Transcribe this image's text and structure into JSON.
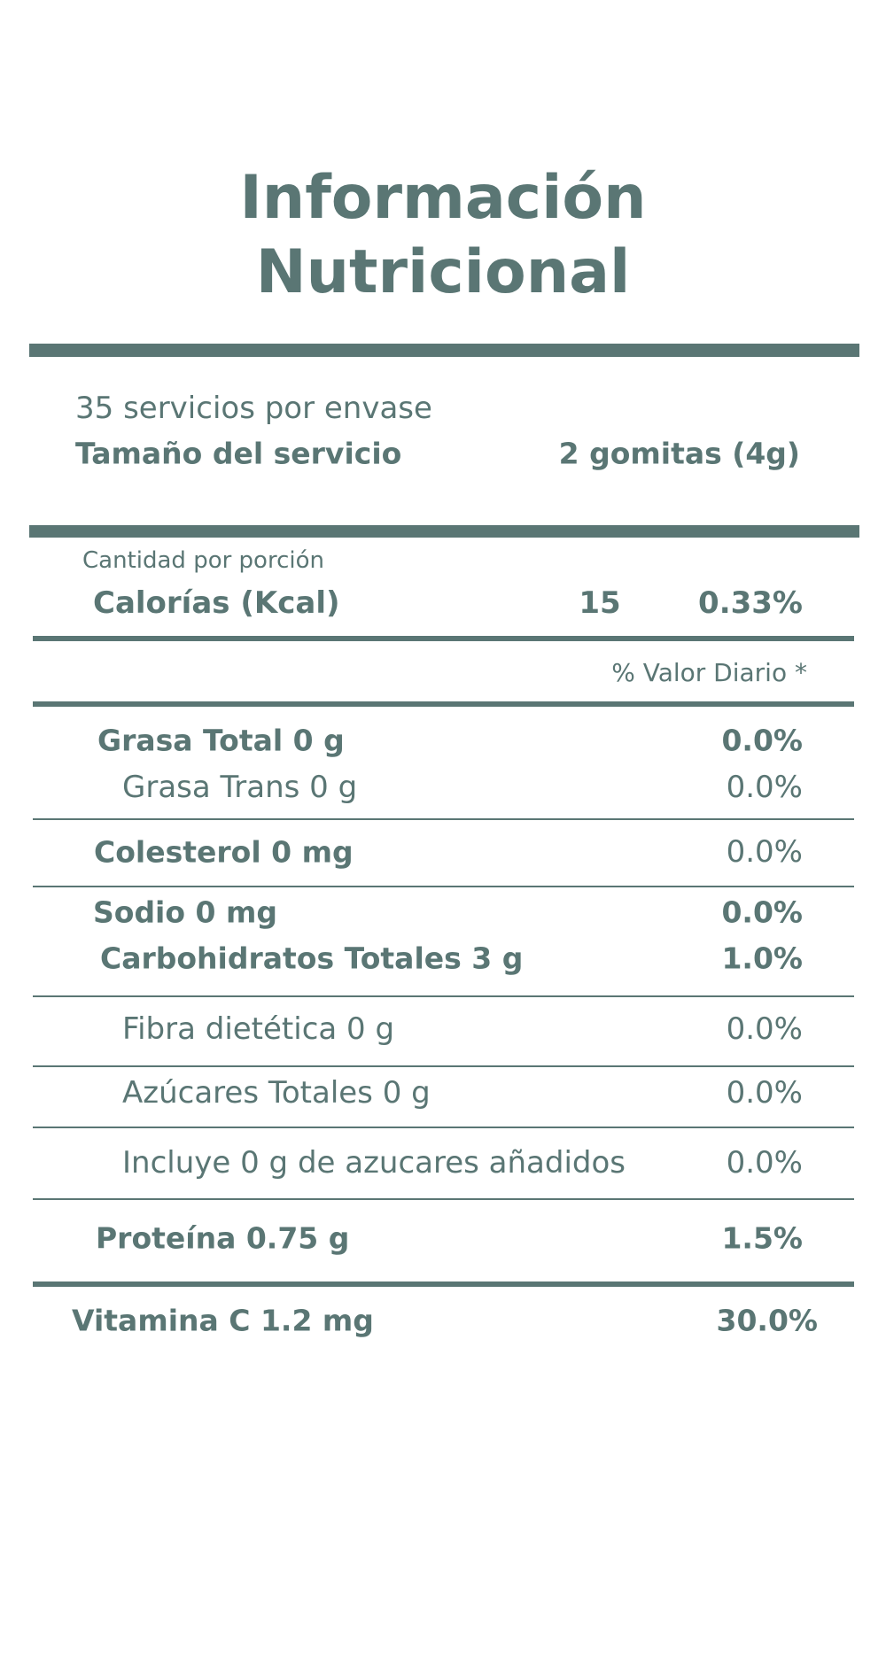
{
  "title_line1": "Información",
  "title_line2": "Nutricional",
  "servings_per_container": "35 servicios por envase",
  "serving_size": {
    "label": "Tamaño del servicio",
    "value": "2 gomitas (4g)"
  },
  "amount_per_serving": "Cantidad por porción",
  "calories": {
    "label": "Calorías (Kcal)",
    "amount": "15",
    "percent": "0.33%"
  },
  "daily_value_header": "% Valor Diario *",
  "rows": [
    {
      "label": "Grasa Total 0 g",
      "percent": "0.0%"
    },
    {
      "label": "Grasa Trans 0 g",
      "percent": "0.0%"
    },
    {
      "label": "Colesterol 0 mg",
      "percent": "0.0%"
    },
    {
      "label": "Sodio 0 mg",
      "percent": "0.0%"
    },
    {
      "label": "Carbohidratos Totales 3 g",
      "percent": "1.0%"
    },
    {
      "label": "Fibra dietética 0 g",
      "percent": "0.0%"
    },
    {
      "label": "Azúcares Totales 0 g",
      "percent": "0.0%"
    },
    {
      "label": "Incluye 0 g de azucares añadidos",
      "percent": "0.0%"
    },
    {
      "label": "Proteína 0.75 g",
      "percent": "1.5%"
    },
    {
      "label": "Vitamina C 1.2 mg",
      "percent": "30.0%"
    }
  ]
}
